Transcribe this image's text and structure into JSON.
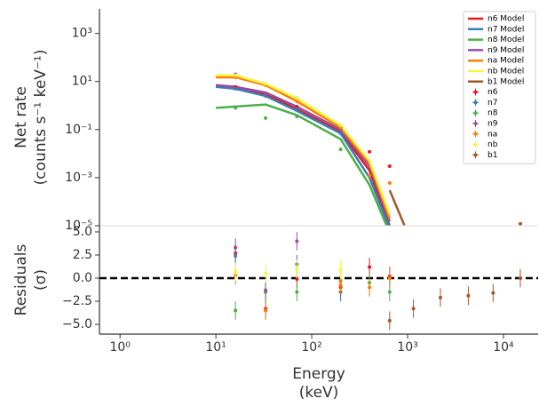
{
  "chart_data": {
    "type": "line",
    "ylabel": [
      "Net rate",
      "(counts s⁻¹ keV⁻¹)"
    ],
    "residual_ylabel": [
      "Residuals",
      "(σ)"
    ],
    "xlabel": [
      "Energy",
      "(keV)"
    ],
    "log_x": true,
    "log_y": true,
    "xlim": [
      0.61,
      23000
    ],
    "xticks": [
      {
        "value": 1,
        "label": "10⁰"
      },
      {
        "value": 10,
        "label": "10¹"
      },
      {
        "value": 100,
        "label": "10²"
      },
      {
        "value": 1000,
        "label": "10³"
      },
      {
        "value": 10000,
        "label": "10⁴"
      }
    ],
    "ylim": [
      1e-05,
      10500
    ],
    "yticks": [
      {
        "value": 1000,
        "label": "10³"
      },
      {
        "value": 10,
        "label": "10¹"
      },
      {
        "value": 0.1,
        "label": "10⁻¹"
      },
      {
        "value": 0.001,
        "label": "10⁻³"
      },
      {
        "value": 1e-05,
        "label": "10⁻⁵"
      }
    ],
    "residual_ylim": [
      -6.06,
      5.67
    ],
    "residual_yticks": [
      {
        "value": 5,
        "label": "5.0"
      },
      {
        "value": 2.5,
        "label": "2.5"
      },
      {
        "value": 0,
        "label": "0.0"
      },
      {
        "value": -2.5,
        "label": "−2.5"
      },
      {
        "value": -5,
        "label": "−5.0"
      }
    ],
    "legend": "upper right",
    "series": [
      {
        "name": "n6",
        "model_name": "n6 Model",
        "color": "#e41a1c",
        "model_x": [
          10,
          16,
          33,
          70,
          200,
          400,
          650
        ],
        "model": [
          7,
          6,
          3,
          0.7,
          0.08,
          0.002,
          1e-05
        ],
        "x": [
          16,
          33,
          70,
          200,
          400,
          650
        ],
        "rates": [
          6,
          3,
          0.9,
          0.1,
          0.012,
          0.003
        ],
        "residuals": [
          2.7,
          -3.3,
          -0.1,
          -1.0,
          1.2,
          0.2
        ],
        "residual_err": [
          1,
          1,
          1,
          1,
          1,
          1
        ]
      },
      {
        "name": "n7",
        "model_name": "n7 Model",
        "color": "#377eb8",
        "model_x": [
          10,
          16,
          33,
          70,
          200,
          400,
          650
        ],
        "model": [
          6,
          5,
          2.5,
          0.6,
          0.07,
          0.001,
          8e-06
        ],
        "x": [
          16,
          33,
          70,
          200
        ],
        "rates": [
          5,
          2.5,
          0.7,
          0.07
        ],
        "residuals": [
          2.4,
          -3.5,
          1.5,
          -1.5
        ],
        "residual_err": [
          1,
          1,
          1,
          1
        ]
      },
      {
        "name": "n8",
        "model_name": "n8 Model",
        "color": "#4daf4a",
        "model_x": [
          10,
          33,
          70,
          200,
          400,
          650
        ],
        "model": [
          0.8,
          1.1,
          0.4,
          0.04,
          0.0005,
          5e-06
        ],
        "x": [
          16,
          33,
          70,
          200,
          400,
          650
        ],
        "rates": [
          0.8,
          0.3,
          0.35,
          0.015,
          null,
          null
        ],
        "residuals": [
          -3.5,
          -1.5,
          -1.5,
          -0.3,
          -0.5,
          -1.5
        ],
        "residual_err": [
          1,
          1,
          1,
          1,
          1,
          1
        ]
      },
      {
        "name": "n9",
        "model_name": "n9 Model",
        "color": "#984ea3",
        "model_x": [
          10,
          16,
          33,
          70,
          200,
          400,
          650
        ],
        "model": [
          7,
          6,
          3.5,
          0.9,
          0.1,
          0.003,
          1.5e-05
        ],
        "x": [
          16,
          33,
          70,
          200
        ],
        "rates": [
          20,
          3,
          2,
          0.1
        ],
        "residuals": [
          3.3,
          -1.3,
          4.0,
          -0.8
        ],
        "residual_err": [
          1,
          1,
          1,
          1
        ]
      },
      {
        "name": "na",
        "model_name": "na Model",
        "color": "#ff7f00",
        "model_x": [
          10,
          16,
          33,
          70,
          200,
          400,
          650
        ],
        "model": [
          15,
          15,
          7,
          1.5,
          0.12,
          0.004,
          2e-05
        ],
        "x": [
          16,
          33,
          70,
          200,
          400,
          650
        ],
        "rates": [
          15,
          7,
          1.5,
          0.12,
          0.0012,
          0.0006
        ],
        "residuals": [
          0.3,
          -3.5,
          1.0,
          -0.7,
          -1.0,
          0.0
        ],
        "residual_err": [
          1,
          1,
          1,
          1,
          1,
          1
        ]
      },
      {
        "name": "nb",
        "model_name": "nb Model",
        "color": "#f5f542",
        "model_x": [
          10,
          16,
          33,
          70,
          200,
          400,
          650
        ],
        "model": [
          18,
          18,
          8,
          2,
          0.15,
          0.005,
          3e-05
        ],
        "x": [
          16,
          33,
          70,
          200
        ],
        "rates": [
          18,
          8,
          2,
          0.15
        ],
        "residuals": [
          0.7,
          0.5,
          1.0,
          0.9
        ],
        "residual_err": [
          1,
          1,
          1,
          1
        ]
      },
      {
        "name": "b1",
        "model_name": "b1 Model",
        "color": "#a65628",
        "model_x": [
          650,
          1000
        ],
        "model": [
          0.0003,
          5e-06
        ],
        "x": [
          650,
          1150,
          2200,
          4300,
          7800,
          15000
        ],
        "rates": [
          null,
          null,
          null,
          null,
          null,
          1.2e-05
        ],
        "residuals": [
          -4.6,
          -3.3,
          -2.1,
          -1.9,
          -1.6,
          0.0
        ],
        "residual_err": [
          1,
          1,
          1,
          1,
          1,
          1
        ]
      }
    ]
  }
}
